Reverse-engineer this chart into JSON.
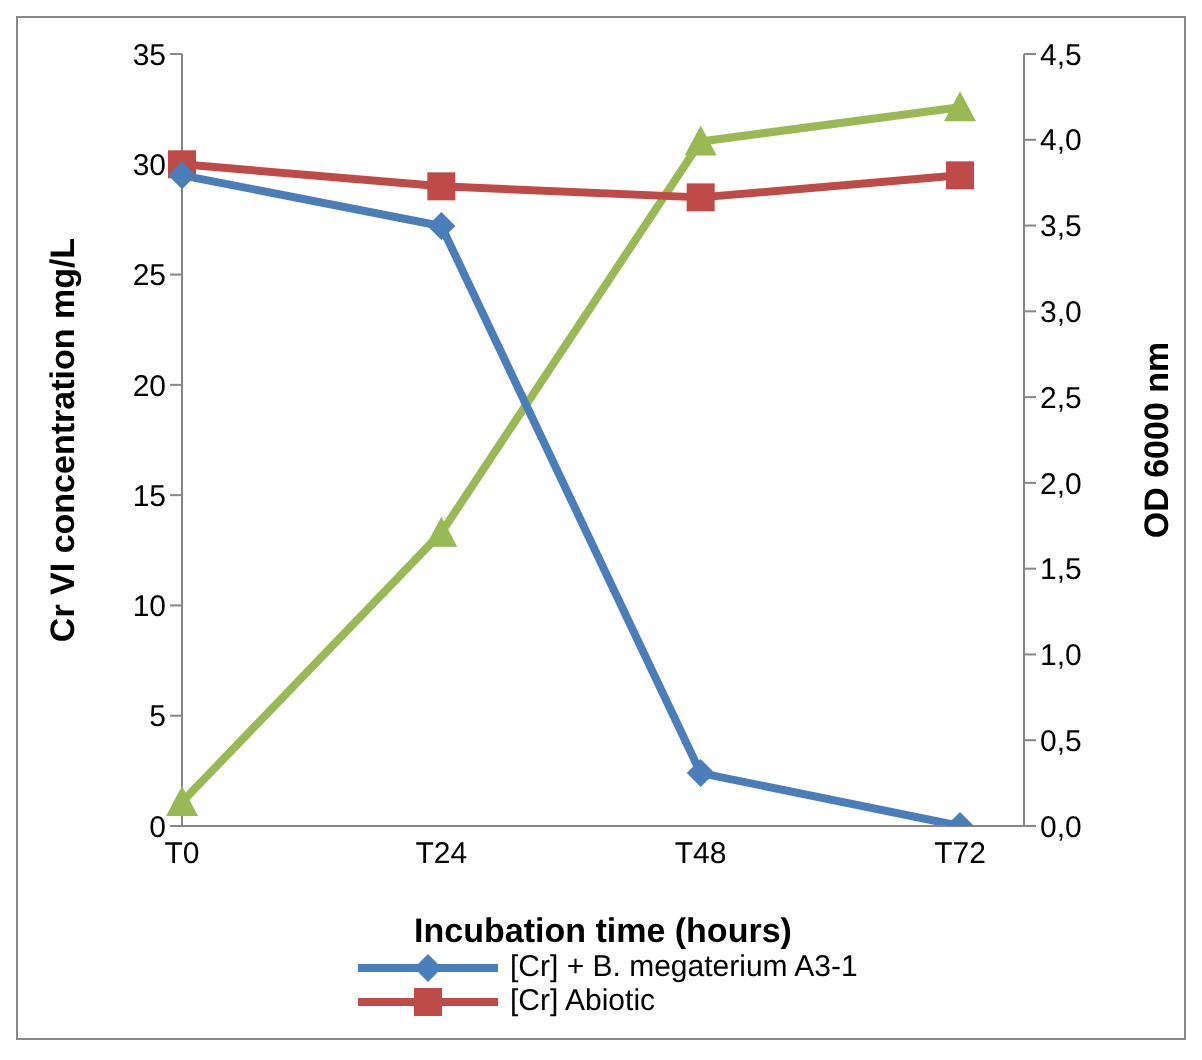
{
  "chart_data": {
    "type": "line",
    "xlabel": "Incubation time (hours)",
    "ylabel": "Cr VI concentration mg/L",
    "y2label": "OD 6000 nm",
    "categories": [
      "T0",
      "T24",
      "T48",
      "T72"
    ],
    "series": [
      {
        "name": "[Cr] + B. megaterium A3-1",
        "color": "#4a7ebb",
        "values": [
          29.5,
          27.2,
          2.4,
          0
        ],
        "marker": "diamond"
      },
      {
        "name": "[Cr] Abiotic",
        "color": "#be4b48",
        "values": [
          30,
          29,
          28.5,
          29.5
        ],
        "marker": "square"
      },
      {
        "color": "#98b954",
        "values": [
          0.14,
          1.71,
          3.99,
          4.19
        ],
        "marker": "triangle",
        "axis": "y2"
      }
    ],
    "ylim": [
      0,
      35
    ],
    "yticks": [
      0,
      5,
      10,
      15,
      20,
      25,
      30,
      35
    ],
    "y2lim": [
      0,
      4.5
    ],
    "y2ticks": [
      {
        "value": 0,
        "label": "0,0"
      },
      {
        "value": 0.5,
        "label": "0,5"
      },
      {
        "value": 1,
        "label": "1,0"
      },
      {
        "value": 1.5,
        "label": "1,5"
      },
      {
        "value": 2,
        "label": "2,0"
      },
      {
        "value": 2.5,
        "label": "2,5"
      },
      {
        "value": 3,
        "label": "3,0"
      },
      {
        "value": 3.5,
        "label": "3,5"
      },
      {
        "value": 4,
        "label": "4,0"
      },
      {
        "value": 4.5,
        "label": "4,5"
      }
    ],
    "grid": false,
    "legend": "bottom",
    "line_style": "solid"
  }
}
